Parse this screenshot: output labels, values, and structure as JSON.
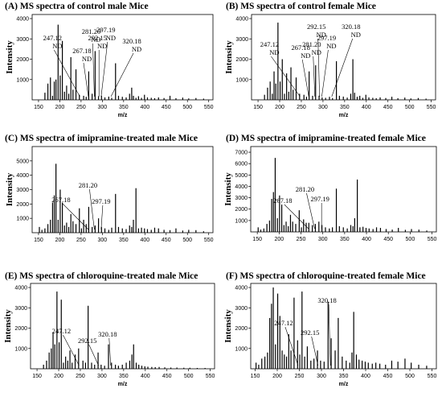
{
  "panels": [
    {
      "title": "(A) MS spectra of control male Mice"
    },
    {
      "title": "(B) MS spectra of control female Mice"
    },
    {
      "title": "(C) MS spectra of imipramine-treated male Mice"
    },
    {
      "title": "(D) MS spectra of imipramine-treated female Mice"
    },
    {
      "title": "(E) MS spectra of chloroquine-treated male Mice"
    },
    {
      "title": "(F) MS spectra of chloroquine-treated female Mice"
    }
  ],
  "chart_data": [
    {
      "type": "bar",
      "title": "(A) MS spectra of control male Mice",
      "xlabel": "m/z",
      "ylabel": "Intensity",
      "xlim": [
        135,
        560
      ],
      "ylim": [
        0,
        4200
      ],
      "xticks": [
        150,
        200,
        250,
        300,
        350,
        400,
        450,
        500,
        550
      ],
      "yticks": [
        1000,
        2000,
        3000,
        4000
      ],
      "x": [
        165,
        172,
        178,
        183,
        187,
        191,
        196,
        201,
        206,
        211,
        216,
        221,
        226,
        231,
        238,
        246,
        256,
        262,
        268,
        276,
        283,
        291,
        298,
        306,
        315,
        322,
        331,
        338,
        347,
        356,
        364,
        369,
        373,
        379,
        385,
        392,
        399,
        406,
        415,
        423,
        432,
        445,
        459,
        473,
        489,
        503,
        520,
        538
      ],
      "values": [
        350,
        800,
        1100,
        200,
        900,
        1000,
        3700,
        1200,
        2900,
        400,
        700,
        300,
        2100,
        500,
        1500,
        250,
        200,
        150,
        1400,
        300,
        2400,
        180,
        200,
        120,
        160,
        100,
        1800,
        200,
        150,
        120,
        300,
        600,
        200,
        100,
        180,
        100,
        250,
        120,
        100,
        80,
        120,
        90,
        200,
        80,
        110,
        70,
        90,
        60
      ],
      "annotations": [
        {
          "label": "247.12",
          "note": "ND",
          "x": 247.12
        },
        {
          "label": "267.18",
          "note": "ND",
          "x": 267.18
        },
        {
          "label": "281.20",
          "note": "ND",
          "x": 281.2
        },
        {
          "label": "292.15",
          "note": "ND",
          "x": 292.15
        },
        {
          "label": "297.19",
          "note": "ND",
          "x": 297.19
        },
        {
          "label": "320.18",
          "note": "ND",
          "x": 320.18
        }
      ]
    },
    {
      "type": "bar",
      "title": "(B) MS spectra of control female Mice",
      "xlabel": "m/z",
      "ylabel": "Intensity",
      "xlim": [
        135,
        560
      ],
      "ylim": [
        0,
        4200
      ],
      "xticks": [
        150,
        200,
        250,
        300,
        350,
        400,
        450,
        500,
        550
      ],
      "yticks": [
        1000,
        2000,
        3000,
        4000
      ],
      "x": [
        165,
        172,
        178,
        183,
        187,
        191,
        196,
        201,
        206,
        211,
        216,
        221,
        226,
        231,
        238,
        246,
        256,
        262,
        268,
        276,
        283,
        291,
        298,
        306,
        315,
        322,
        331,
        338,
        347,
        356,
        364,
        369,
        373,
        379,
        385,
        392,
        399,
        406,
        415,
        423,
        432,
        445,
        459,
        473,
        489,
        503,
        520,
        538
      ],
      "values": [
        250,
        600,
        900,
        300,
        1400,
        800,
        3800,
        900,
        2000,
        300,
        1300,
        400,
        1600,
        500,
        1100,
        300,
        250,
        150,
        1400,
        200,
        1700,
        200,
        120,
        100,
        150,
        90,
        1900,
        200,
        160,
        110,
        300,
        2000,
        350,
        150,
        200,
        100,
        250,
        120,
        100,
        80,
        120,
        90,
        150,
        80,
        110,
        70,
        90,
        60
      ],
      "annotations": [
        {
          "label": "247.12",
          "note": "ND",
          "x": 247.12
        },
        {
          "label": "267.18",
          "note": "ND",
          "x": 267.18
        },
        {
          "label": "281.20",
          "note": "ND",
          "x": 281.2
        },
        {
          "label": "292.15",
          "note": "ND",
          "x": 292.15
        },
        {
          "label": "297.19",
          "note": "ND",
          "x": 297.19
        },
        {
          "label": "320.18",
          "note": "ND",
          "x": 320.18
        }
      ]
    },
    {
      "type": "bar",
      "title": "(C) MS spectra of imipramine-treated male Mice",
      "xlabel": "",
      "ylabel": "Intensity",
      "xlim": [
        135,
        560
      ],
      "ylim": [
        0,
        6000
      ],
      "xticks": [
        150,
        200,
        250,
        300,
        350,
        400,
        450,
        500,
        550
      ],
      "yticks": [
        1000,
        2000,
        3000,
        4000,
        5000
      ],
      "x": [
        152,
        158,
        165,
        172,
        178,
        183,
        187,
        191,
        196,
        201,
        206,
        211,
        216,
        221,
        226,
        231,
        238,
        246,
        251,
        256,
        262,
        268,
        276,
        283,
        291,
        298,
        306,
        315,
        322,
        331,
        338,
        347,
        356,
        364,
        369,
        373,
        379,
        385,
        392,
        399,
        406,
        415,
        423,
        432,
        445,
        459,
        473,
        489,
        503,
        520,
        538
      ],
      "values": [
        400,
        200,
        300,
        600,
        900,
        2100,
        2600,
        4800,
        900,
        3000,
        2100,
        500,
        700,
        400,
        1300,
        800,
        600,
        1700,
        300,
        900,
        600,
        1800,
        400,
        500,
        1000,
        400,
        300,
        200,
        350,
        2700,
        400,
        300,
        250,
        500,
        400,
        900,
        3100,
        300,
        350,
        300,
        250,
        200,
        350,
        300,
        200,
        180,
        300,
        150,
        200,
        180,
        100
      ],
      "annotations": [
        {
          "label": "267.18",
          "x": 267.18
        },
        {
          "label": "281.20",
          "x": 281.2
        },
        {
          "label": "297.19",
          "x": 297.19
        }
      ]
    },
    {
      "type": "bar",
      "title": "(D) MS spectra of imipramine-treated female Mice",
      "xlabel": "",
      "ylabel": "Intensity",
      "xlim": [
        135,
        560
      ],
      "ylim": [
        0,
        7500
      ],
      "xticks": [
        150,
        200,
        250,
        300,
        350,
        400,
        450,
        500,
        550
      ],
      "yticks": [
        1000,
        2000,
        3000,
        4000,
        5000,
        6000,
        7000
      ],
      "x": [
        152,
        158,
        165,
        172,
        178,
        183,
        187,
        191,
        196,
        201,
        206,
        211,
        216,
        221,
        226,
        231,
        238,
        246,
        251,
        256,
        262,
        268,
        276,
        283,
        291,
        298,
        306,
        315,
        322,
        331,
        338,
        347,
        356,
        364,
        369,
        373,
        379,
        385,
        392,
        399,
        406,
        415,
        423,
        432,
        445,
        459,
        473,
        489,
        503,
        520,
        538
      ],
      "values": [
        400,
        200,
        300,
        700,
        1000,
        2900,
        3500,
        6500,
        1200,
        3200,
        2400,
        600,
        900,
        500,
        1500,
        900,
        700,
        1900,
        400,
        1100,
        800,
        800,
        600,
        700,
        900,
        600,
        400,
        300,
        400,
        3800,
        500,
        400,
        300,
        600,
        500,
        1200,
        4600,
        400,
        450,
        350,
        300,
        250,
        400,
        350,
        250,
        200,
        350,
        180,
        250,
        200,
        120
      ],
      "annotations": [
        {
          "label": "267.18",
          "x": 267.18
        },
        {
          "label": "281.20",
          "x": 281.2
        },
        {
          "label": "297.19",
          "x": 297.19
        }
      ]
    },
    {
      "type": "bar",
      "title": "(E) MS spectra of chloroquine-treated male Mice",
      "xlabel": "m/z",
      "ylabel": "Intensity",
      "xlim": [
        135,
        560
      ],
      "ylim": [
        0,
        4200
      ],
      "xticks": [
        150,
        200,
        250,
        300,
        350,
        400,
        450,
        500,
        550
      ],
      "yticks": [
        1000,
        2000,
        3000,
        4000
      ],
      "x": [
        165,
        172,
        178,
        183,
        187,
        191,
        196,
        201,
        206,
        211,
        216,
        221,
        226,
        231,
        238,
        246,
        256,
        262,
        268,
        276,
        283,
        291,
        298,
        306,
        315,
        322,
        331,
        338,
        347,
        356,
        364,
        369,
        373,
        379,
        385,
        392,
        399,
        406,
        415,
        423,
        432,
        445,
        459,
        473,
        489,
        503,
        520,
        538
      ],
      "values": [
        200,
        400,
        800,
        1000,
        1800,
        1200,
        3800,
        1300,
        3400,
        300,
        600,
        400,
        900,
        300,
        700,
        1000,
        400,
        300,
        3100,
        300,
        200,
        800,
        200,
        150,
        1200,
        300,
        200,
        150,
        200,
        300,
        400,
        700,
        1200,
        300,
        200,
        150,
        120,
        100,
        90,
        80,
        90,
        70,
        60,
        60,
        50,
        50,
        40,
        40
      ],
      "annotations": [
        {
          "label": "247.12",
          "x": 247.12
        },
        {
          "label": "292.15",
          "x": 292.15
        },
        {
          "label": "320.18",
          "x": 320.18
        }
      ]
    },
    {
      "type": "bar",
      "title": "(F) MS spectra of chloroquine-treated female Mice",
      "xlabel": "m/z",
      "ylabel": "Intensity",
      "xlim": [
        140,
        560
      ],
      "ylim": [
        0,
        4200
      ],
      "xticks": [
        150,
        200,
        250,
        300,
        350,
        400,
        450,
        500,
        550
      ],
      "yticks": [
        1000,
        2000,
        3000,
        4000
      ],
      "x": [
        152,
        158,
        165,
        172,
        178,
        183,
        187,
        191,
        196,
        201,
        206,
        211,
        216,
        221,
        226,
        231,
        238,
        246,
        251,
        256,
        262,
        268,
        276,
        283,
        291,
        298,
        306,
        315,
        322,
        331,
        338,
        347,
        356,
        364,
        369,
        373,
        379,
        385,
        392,
        399,
        406,
        415,
        423,
        432,
        445,
        459,
        473,
        489,
        503,
        520,
        538
      ],
      "values": [
        300,
        200,
        500,
        600,
        800,
        2500,
        3200,
        4000,
        1200,
        3700,
        2600,
        900,
        700,
        600,
        1700,
        900,
        3500,
        1400,
        700,
        3800,
        600,
        1100,
        400,
        500,
        900,
        400,
        350,
        3300,
        1500,
        900,
        2500,
        600,
        400,
        300,
        800,
        2800,
        700,
        450,
        400,
        350,
        300,
        250,
        300,
        250,
        200,
        400,
        350,
        500,
        300,
        200,
        150
      ],
      "annotations": [
        {
          "label": "247.12",
          "x": 247.12
        },
        {
          "label": "292.15",
          "x": 292.15
        },
        {
          "label": "320.18",
          "x": 320.18
        }
      ]
    }
  ]
}
